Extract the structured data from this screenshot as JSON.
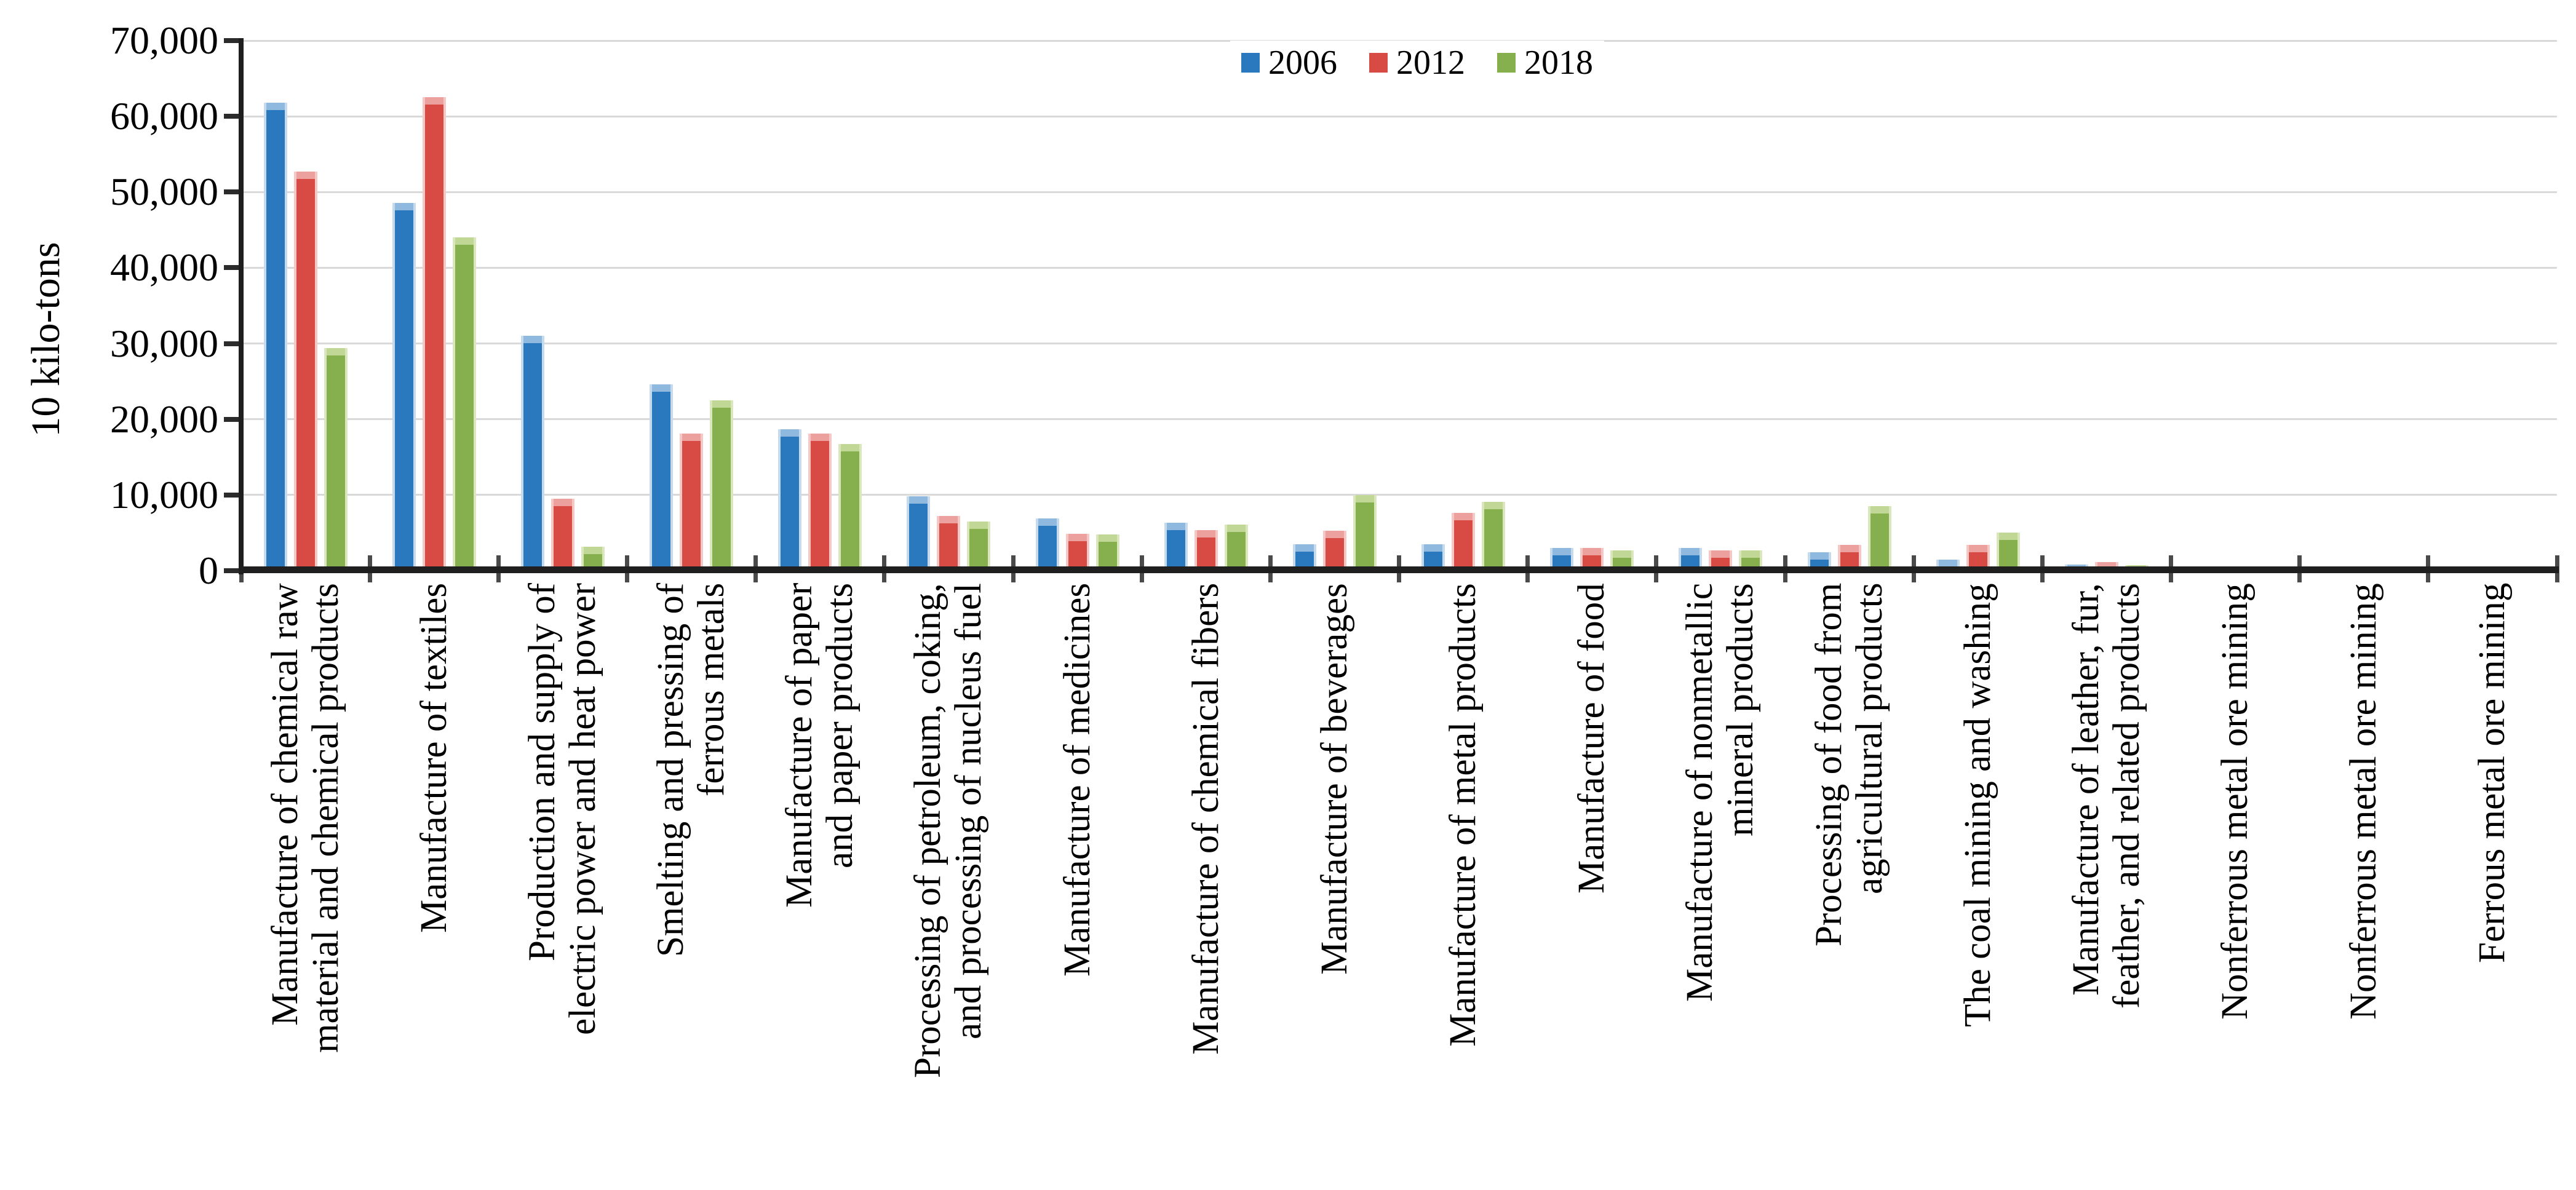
{
  "chart_data": {
    "type": "bar",
    "title": "",
    "xlabel": "",
    "ylabel": "10 kilo-tons",
    "ylim": [
      0,
      70000
    ],
    "ytick_step": 10000,
    "ytick_labels": [
      "0",
      "10,000",
      "20,000",
      "30,000",
      "40,000",
      "50,000",
      "60,000",
      "70,000"
    ],
    "grid": true,
    "legend_position": "top-center",
    "categories": [
      "Manufacture of chemical raw\nmaterial and chemical products",
      "Manufacture of textiles",
      "Production and supply of\nelectric power and heat power",
      "Smelting and pressing of\nferrous metals",
      "Manufacture of paper\nand paper products",
      "Processing of petroleum, coking,\nand processing of nucleus fuel",
      "Manufacture of medicines",
      "Manufacture of chemical fibers",
      "Manufacture of beverages",
      "Manufacture of metal products",
      "Manufacture of food",
      "Manufacture of nonmetallic\nmineral products",
      "Processing of food from\nagricultural products",
      "The coal mining and washing",
      "Manufacture of leather, fur,\nfeather, and related products",
      "Nonferrous metal ore mining",
      "Nonferrous metal ore mining",
      "Ferrous metal ore mining"
    ],
    "series": [
      {
        "name": "2006",
        "color": "#2A79BE",
        "cap_color": "#8FB9DF",
        "edge_color": "#C5DAED",
        "values": [
          61800,
          48600,
          31000,
          24600,
          18700,
          9800,
          6900,
          6300,
          3500,
          3500,
          3000,
          3000,
          2400,
          1500,
          800,
          420,
          380,
          360
        ]
      },
      {
        "name": "2012",
        "color": "#D84B45",
        "cap_color": "#EDA19E",
        "edge_color": "#F5C7C5",
        "values": [
          52700,
          62500,
          9500,
          18100,
          18100,
          7200,
          4900,
          5400,
          5300,
          7600,
          3000,
          2700,
          3400,
          3400,
          1150,
          420,
          430,
          420
        ]
      },
      {
        "name": "2018",
        "color": "#85B04D",
        "cap_color": "#C0D795",
        "edge_color": "#DAE7BD",
        "values": [
          29400,
          44000,
          3200,
          22500,
          16700,
          6500,
          4800,
          6100,
          9950,
          9100,
          2700,
          2700,
          8500,
          5000,
          750,
          380,
          360,
          330
        ]
      }
    ]
  },
  "colors": {
    "gridline": "#D9D9D9",
    "axis": "#1F1F1F",
    "tick": "#4A4A4A",
    "background": "#FFFFFF",
    "text": "#000000"
  }
}
